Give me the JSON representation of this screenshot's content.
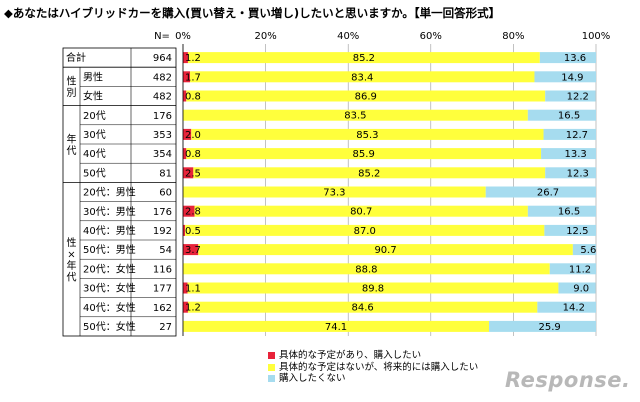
{
  "title": "◆あなたはハイブリッドカーを購入(買い替え・買い増し)したいと思いますか。【単一回答形式】",
  "watermark": "Response.",
  "colors": {
    "definite": "#e8233a",
    "future": "#ffff3c",
    "no": "#a6dcef"
  },
  "chart_data": {
    "type": "bar",
    "orientation": "horizontal",
    "stacked": true,
    "xlim": [
      0,
      100
    ],
    "x_ticks": [
      "0%",
      "20%",
      "40%",
      "60%",
      "80%",
      "100%"
    ],
    "n_header": "N=",
    "groups": [
      {
        "label": "",
        "start": 0,
        "end": 0
      },
      {
        "label": "性別",
        "start": 1,
        "end": 2
      },
      {
        "label": "年代",
        "start": 3,
        "end": 6
      },
      {
        "label": "性×年代",
        "start": 7,
        "end": 14
      }
    ],
    "categories": [
      "合計",
      "男性",
      "女性",
      "20代",
      "30代",
      "40代",
      "50代",
      "20代：男性",
      "30代：男性",
      "40代：男性",
      "50代：男性",
      "20代：女性",
      "30代：女性",
      "40代：女性",
      "50代：女性"
    ],
    "n": [
      964,
      482,
      482,
      176,
      353,
      354,
      81,
      60,
      176,
      192,
      54,
      116,
      177,
      162,
      27
    ],
    "series": [
      {
        "name": "具体的な予定があり、購入したい",
        "values": [
          1.2,
          1.7,
          0.8,
          null,
          2.0,
          0.8,
          2.5,
          null,
          2.8,
          0.5,
          3.7,
          null,
          1.1,
          1.2,
          null
        ]
      },
      {
        "name": "具体的な予定はないが、将来的には購入したい",
        "values": [
          85.2,
          83.4,
          86.9,
          83.5,
          85.3,
          85.9,
          85.2,
          73.3,
          80.7,
          87.0,
          90.7,
          88.8,
          89.8,
          84.6,
          74.1
        ]
      },
      {
        "name": "購入したくない",
        "values": [
          13.6,
          14.9,
          12.2,
          16.5,
          12.7,
          13.3,
          12.3,
          26.7,
          16.5,
          12.5,
          5.6,
          11.2,
          9.0,
          14.2,
          25.9
        ]
      }
    ],
    "value_labels": [
      [
        "1.2",
        "85.2",
        "13.6"
      ],
      [
        "1.7",
        "83.4",
        "14.9"
      ],
      [
        "0.8",
        "86.9",
        "12.2"
      ],
      [
        "",
        "83.5",
        "16.5"
      ],
      [
        "2.0",
        "85.3",
        "12.7"
      ],
      [
        "0.8",
        "85.9",
        "13.3"
      ],
      [
        "2.5",
        "85.2",
        "12.3"
      ],
      [
        "",
        "73.3",
        "26.7"
      ],
      [
        "2.8",
        "80.7",
        "16.5"
      ],
      [
        "0.5",
        "87.0",
        "12.5"
      ],
      [
        "3.7",
        "90.7",
        "5.6"
      ],
      [
        "",
        "88.8",
        "11.2"
      ],
      [
        "1.1",
        "89.8",
        "9.0"
      ],
      [
        "1.2",
        "84.6",
        "14.2"
      ],
      [
        "",
        "74.1",
        "25.9"
      ]
    ],
    "legend_position": "bottom"
  }
}
